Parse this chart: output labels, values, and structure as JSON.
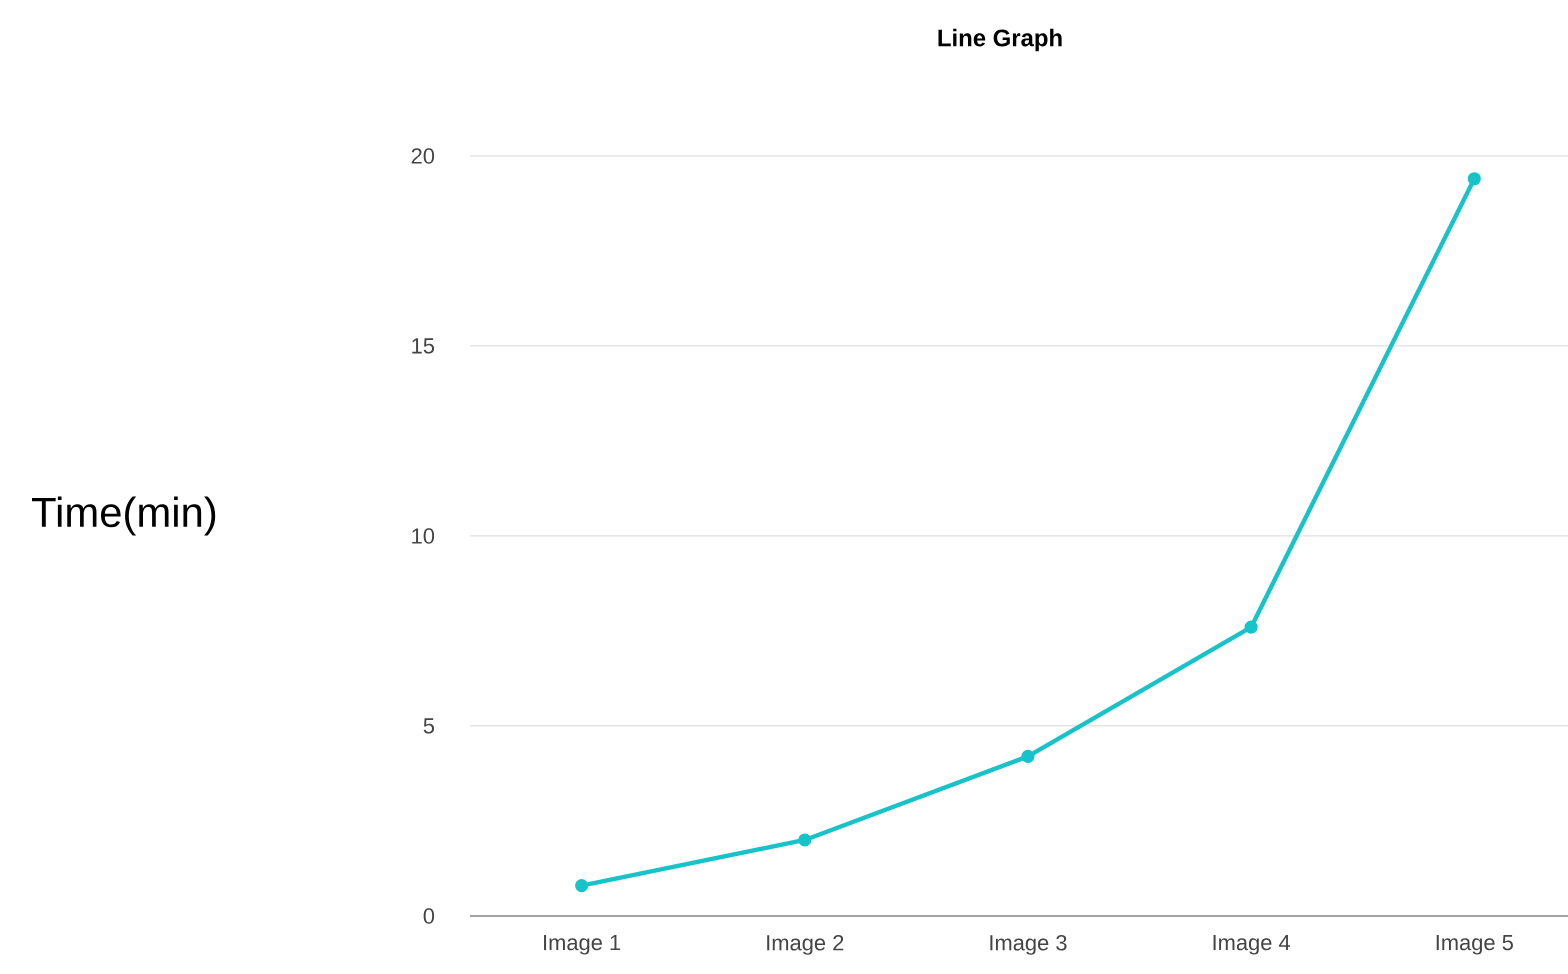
{
  "chart_data": {
    "type": "line",
    "title": "Line Graph",
    "ylabel": "Time(min)",
    "categories": [
      "Image 1",
      "Image 2",
      "Image 3",
      "Image 4",
      "Image 5"
    ],
    "series": [
      {
        "color": "#17c3c8",
        "values": [
          0.8,
          2.0,
          4.2,
          7.6,
          19.4
        ]
      }
    ],
    "ylim": [
      0,
      20
    ],
    "yticks": [
      0,
      5,
      10,
      15,
      20
    ],
    "grid": "y",
    "marker": "circle",
    "line_style": "solid"
  }
}
